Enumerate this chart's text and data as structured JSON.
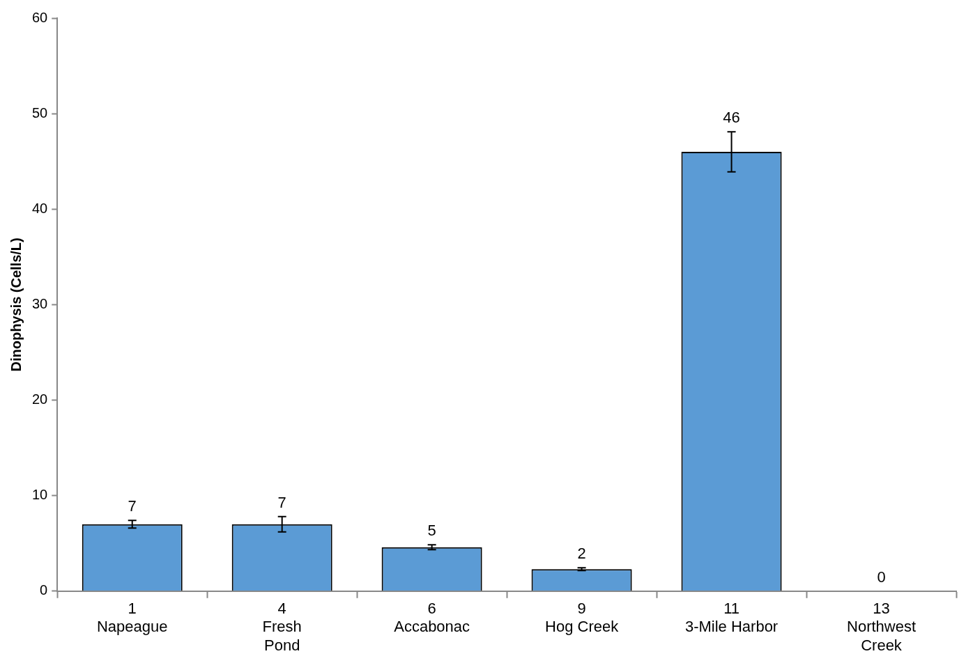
{
  "chart_data": {
    "type": "bar",
    "ylabel": "Dinophysis (Cells/L)",
    "categories": [
      "1\nNapeague",
      "4\nFresh\nPond",
      "6\nAccabonac",
      "9\nHog Creek",
      "11\n3-Mile Harbor",
      "13\nNorthwest\nCreek"
    ],
    "values": [
      7.0,
      7.0,
      4.6,
      2.3,
      46.0,
      0
    ],
    "errors": [
      0.4,
      0.8,
      0.25,
      0.15,
      2.1,
      null
    ],
    "value_labels": [
      "7",
      "7",
      "5",
      "2",
      "46",
      "0"
    ],
    "color": "#5b9bd5",
    "ylim": [
      0,
      60
    ],
    "yticks": [
      0,
      10,
      20,
      30,
      40,
      50,
      60
    ],
    "grid": false,
    "legend": false
  }
}
